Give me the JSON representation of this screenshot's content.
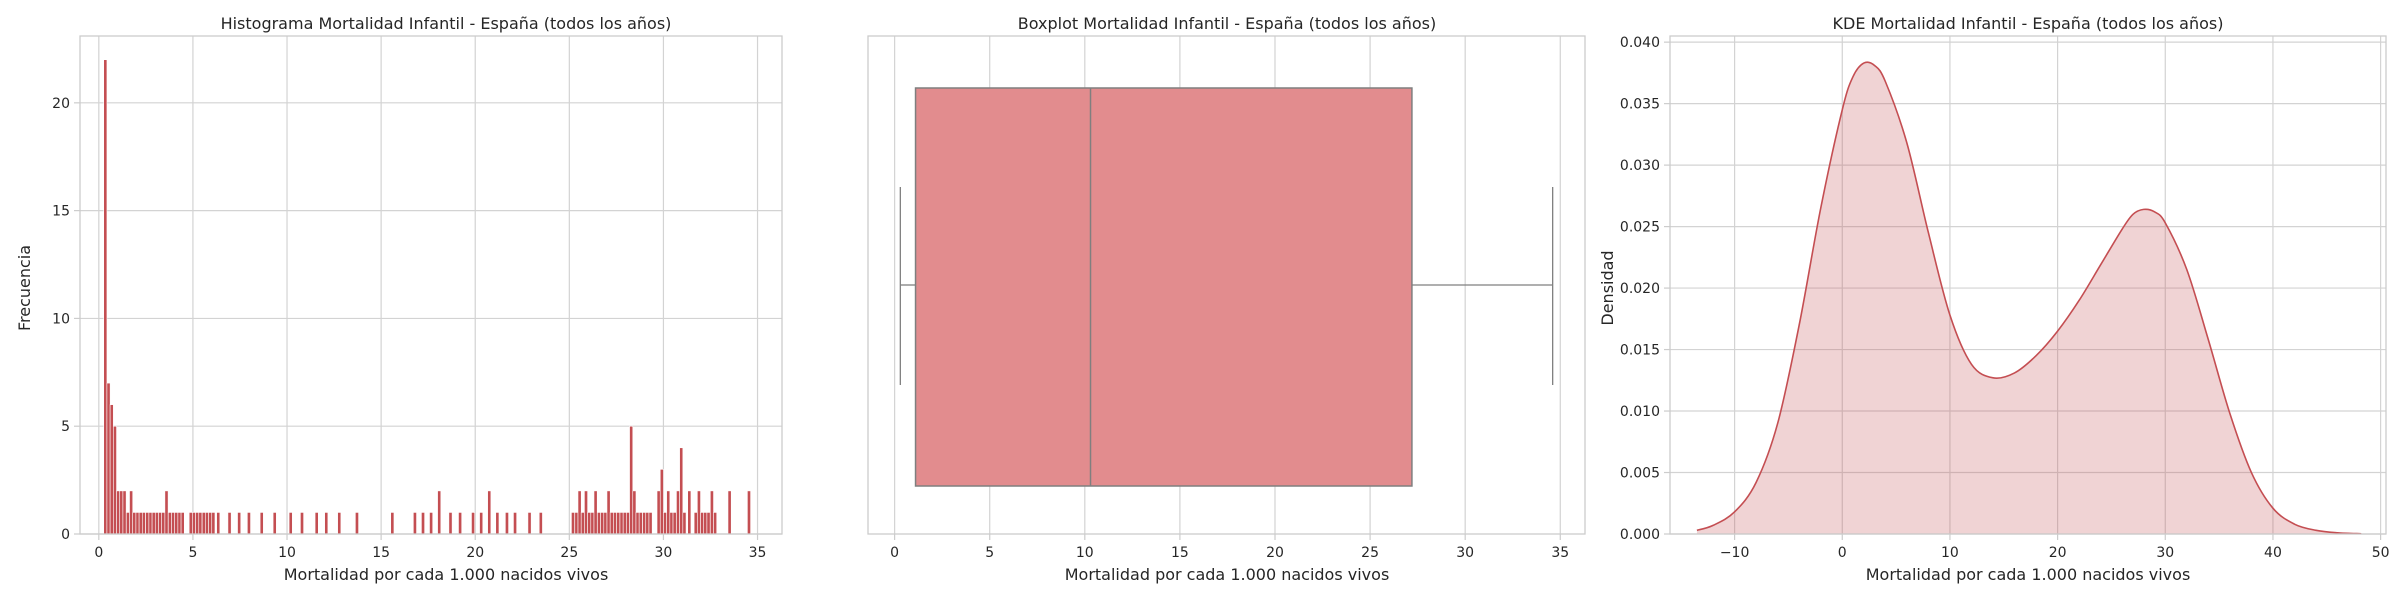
{
  "chart_data": [
    {
      "type": "bar",
      "title": "Histograma Mortalidad Infantil - España (todos los años)",
      "xlabel": "Mortalidad por cada 1.000 nacidos vivos",
      "ylabel": "Frecuencia",
      "xlim": [
        -1.0,
        36.3
      ],
      "ylim": [
        0,
        23.1
      ],
      "xticks": [
        0,
        5,
        10,
        15,
        20,
        25,
        30,
        35
      ],
      "yticks": [
        0,
        5,
        10,
        15,
        20
      ],
      "bin_width": 0.172,
      "grid": true,
      "color": "#c44e52",
      "bins": [
        [
          0.26,
          22
        ],
        [
          0.43,
          7
        ],
        [
          0.6,
          6
        ],
        [
          0.77,
          5
        ],
        [
          0.94,
          2
        ],
        [
          1.11,
          2
        ],
        [
          1.28,
          2
        ],
        [
          1.46,
          1
        ],
        [
          1.63,
          2
        ],
        [
          1.8,
          1
        ],
        [
          1.97,
          1
        ],
        [
          2.14,
          1
        ],
        [
          2.31,
          1
        ],
        [
          2.49,
          1
        ],
        [
          2.66,
          1
        ],
        [
          2.83,
          1
        ],
        [
          3.0,
          1
        ],
        [
          3.17,
          1
        ],
        [
          3.34,
          1
        ],
        [
          3.51,
          2
        ],
        [
          3.69,
          1
        ],
        [
          3.86,
          1
        ],
        [
          4.03,
          1
        ],
        [
          4.2,
          1
        ],
        [
          4.37,
          1
        ],
        [
          4.8,
          1
        ],
        [
          4.97,
          1
        ],
        [
          5.14,
          1
        ],
        [
          5.31,
          1
        ],
        [
          5.49,
          1
        ],
        [
          5.66,
          1
        ],
        [
          5.83,
          1
        ],
        [
          6.0,
          1
        ],
        [
          6.26,
          1
        ],
        [
          6.86,
          1
        ],
        [
          7.37,
          1
        ],
        [
          7.89,
          1
        ],
        [
          8.57,
          1
        ],
        [
          9.26,
          1
        ],
        [
          10.11,
          1
        ],
        [
          10.71,
          1
        ],
        [
          11.49,
          1
        ],
        [
          12.0,
          1
        ],
        [
          12.69,
          1
        ],
        [
          13.63,
          1
        ],
        [
          15.51,
          1
        ],
        [
          16.71,
          1
        ],
        [
          17.14,
          1
        ],
        [
          17.57,
          1
        ],
        [
          18.0,
          2
        ],
        [
          18.6,
          1
        ],
        [
          19.11,
          1
        ],
        [
          19.8,
          1
        ],
        [
          20.23,
          1
        ],
        [
          20.66,
          2
        ],
        [
          21.09,
          1
        ],
        [
          21.6,
          1
        ],
        [
          22.03,
          1
        ],
        [
          22.8,
          1
        ],
        [
          23.4,
          1
        ],
        [
          25.11,
          1
        ],
        [
          25.29,
          1
        ],
        [
          25.46,
          2
        ],
        [
          25.63,
          1
        ],
        [
          25.8,
          2
        ],
        [
          25.97,
          1
        ],
        [
          26.14,
          1
        ],
        [
          26.31,
          2
        ],
        [
          26.49,
          1
        ],
        [
          26.66,
          1
        ],
        [
          26.83,
          1
        ],
        [
          27.0,
          2
        ],
        [
          27.17,
          1
        ],
        [
          27.34,
          1
        ],
        [
          27.51,
          1
        ],
        [
          27.69,
          1
        ],
        [
          27.86,
          1
        ],
        [
          28.03,
          1
        ],
        [
          28.2,
          5
        ],
        [
          28.37,
          2
        ],
        [
          28.54,
          1
        ],
        [
          28.71,
          1
        ],
        [
          28.89,
          1
        ],
        [
          29.06,
          1
        ],
        [
          29.23,
          1
        ],
        [
          29.66,
          2
        ],
        [
          29.83,
          3
        ],
        [
          30.0,
          1
        ],
        [
          30.17,
          2
        ],
        [
          30.34,
          1
        ],
        [
          30.51,
          1
        ],
        [
          30.69,
          2
        ],
        [
          30.86,
          4
        ],
        [
          31.03,
          1
        ],
        [
          31.29,
          2
        ],
        [
          31.63,
          1
        ],
        [
          31.8,
          2
        ],
        [
          31.97,
          1
        ],
        [
          32.14,
          1
        ],
        [
          32.31,
          1
        ],
        [
          32.49,
          2
        ],
        [
          32.66,
          1
        ],
        [
          33.43,
          2
        ],
        [
          34.46,
          2
        ]
      ]
    },
    {
      "type": "box",
      "title": "Boxplot Mortalidad Infantil - España (todos los años)",
      "xlabel": "Mortalidad por cada 1.000 nacidos vivos",
      "xlim": [
        -1.4,
        36.3
      ],
      "xticks": [
        0,
        5,
        10,
        15,
        20,
        25,
        30,
        35
      ],
      "whisker_low": 0.3,
      "q1": 1.1,
      "median": 10.3,
      "q3": 27.2,
      "whisker_high": 34.6,
      "grid": true,
      "color": "#e28c8e"
    },
    {
      "type": "area",
      "title": "KDE Mortalidad Infantil - España (todos los años)",
      "xlabel": "Mortalidad por cada 1.000 nacidos vivos",
      "ylabel": "Densidad",
      "xlim": [
        -16.0,
        50.5
      ],
      "ylim": [
        0,
        0.0405
      ],
      "xticks": [
        -10,
        0,
        10,
        20,
        30,
        40,
        50
      ],
      "xtick_labels": [
        "−10",
        "0",
        "10",
        "20",
        "30",
        "40",
        "50"
      ],
      "yticks": [
        0,
        0.005,
        0.01,
        0.015,
        0.02,
        0.025,
        0.03,
        0.035,
        0.04
      ],
      "ytick_labels": [
        "0.000",
        "0.005",
        "0.010",
        "0.015",
        "0.020",
        "0.025",
        "0.030",
        "0.035",
        "0.040"
      ],
      "grid": true,
      "color": "#c44e52",
      "x": [
        -13.5,
        -12,
        -10,
        -8,
        -6,
        -4,
        -2,
        0,
        1,
        2,
        3,
        4,
        6,
        8,
        10,
        12,
        14,
        16,
        18,
        20,
        22,
        24,
        26,
        27,
        28,
        29,
        30,
        32,
        34,
        36,
        38,
        40,
        42,
        44,
        46,
        48.2
      ],
      "y": [
        0.0003,
        0.0007,
        0.0018,
        0.0042,
        0.009,
        0.017,
        0.0265,
        0.0345,
        0.0372,
        0.0383,
        0.0381,
        0.0368,
        0.0318,
        0.0245,
        0.0178,
        0.0138,
        0.0127,
        0.0131,
        0.0145,
        0.0165,
        0.019,
        0.0219,
        0.0248,
        0.026,
        0.0264,
        0.0262,
        0.0253,
        0.0215,
        0.0158,
        0.0098,
        0.005,
        0.0021,
        0.0008,
        0.0003,
        0.0001,
        2e-05
      ]
    }
  ]
}
